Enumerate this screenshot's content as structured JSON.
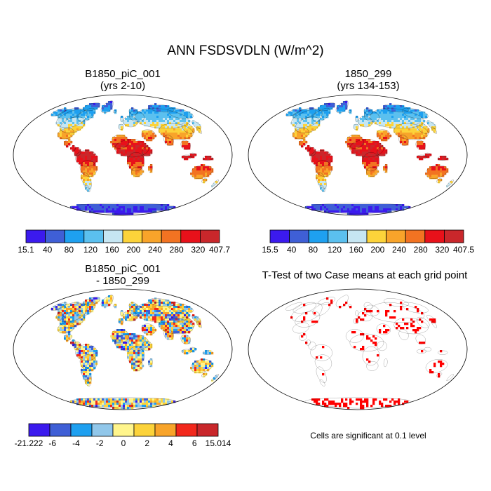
{
  "title": "ANN FSDSVDLN (W/m^2)",
  "panels": [
    {
      "id": "case1",
      "title_line1": "B1850_piC_001",
      "title_line2": "(yrs 2-10)",
      "colorbar": {
        "colors": [
          "#3b1aee",
          "#3f5fd6",
          "#1ea0f0",
          "#5bc0ef",
          "#c6e6f2",
          "#fcd33a",
          "#f8a42a",
          "#f27322",
          "#e8111a",
          "#c9272b"
        ],
        "labels": [
          "15.1",
          "40",
          "80",
          "120",
          "160",
          "200",
          "240",
          "280",
          "320",
          "407.7"
        ]
      }
    },
    {
      "id": "case2",
      "title_line1": "1850_299",
      "title_line2": "(yrs 134-153)",
      "colorbar": {
        "colors": [
          "#3b1aee",
          "#3f5fd6",
          "#1ea0f0",
          "#5bc0ef",
          "#c6e6f2",
          "#fcd33a",
          "#f8a42a",
          "#f27322",
          "#e8111a",
          "#c9272b"
        ],
        "labels": [
          "15.5",
          "40",
          "80",
          "120",
          "160",
          "200",
          "240",
          "280",
          "320",
          "407.5"
        ]
      }
    },
    {
      "id": "diff",
      "title_line1": "B1850_piC_001",
      "title_line2": "- 1850_299",
      "colorbar": {
        "colors": [
          "#3b1aee",
          "#3f5fd6",
          "#1ea0f0",
          "#91c7ea",
          "#fff58c",
          "#fcd33a",
          "#f8a42a",
          "#f2281c",
          "#c9272b"
        ],
        "labels": [
          "-21.222",
          "-6",
          "-4",
          "-2",
          "0",
          "2",
          "4",
          "6",
          "15.014"
        ]
      }
    },
    {
      "id": "ttest",
      "title_line1": "T-Test of two Case means at each grid point",
      "note": "Cells are significant at 0.1 level",
      "significant_color": "#ff0000"
    }
  ],
  "colors": {
    "land_outline": "#000000",
    "ocean": "#ffffff"
  }
}
